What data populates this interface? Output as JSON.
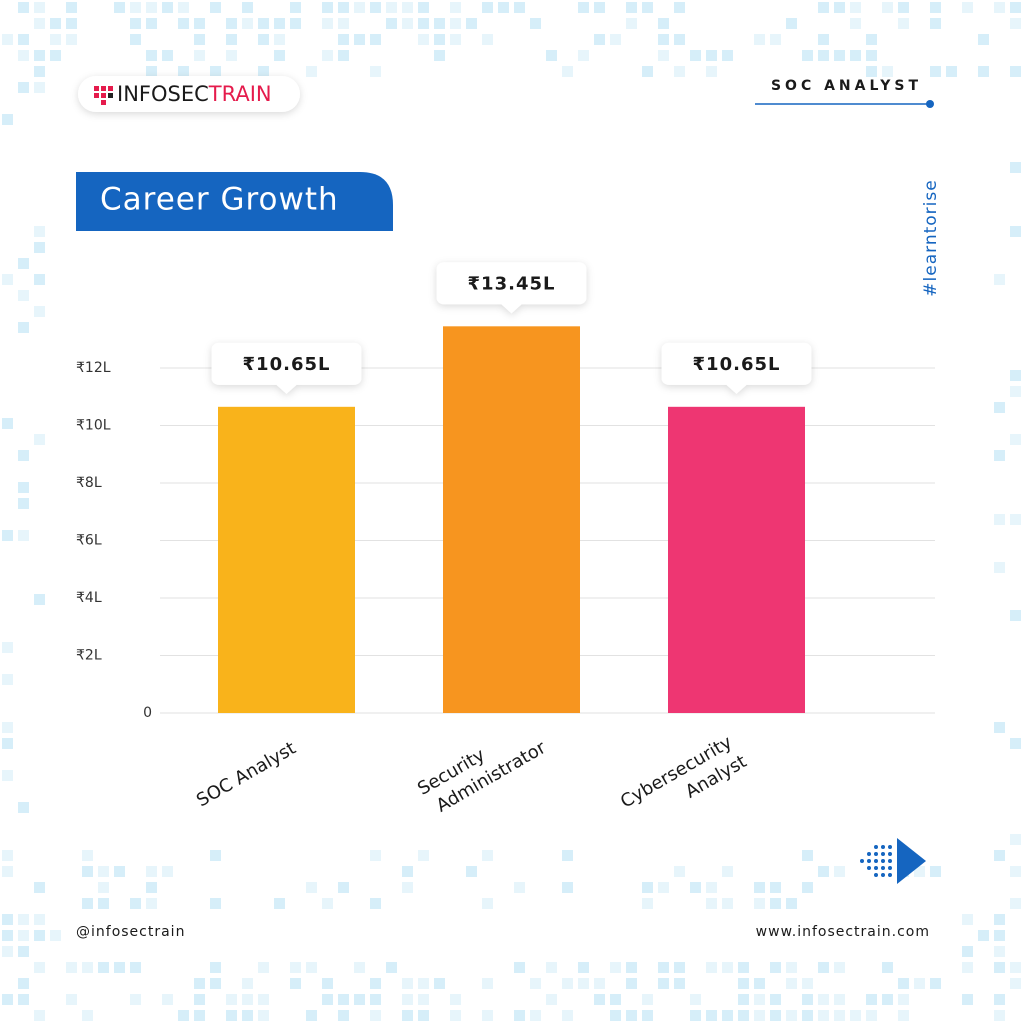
{
  "brand": {
    "first": "INFOSEC",
    "second": "TRAIN"
  },
  "topic": "SOC ANALYST",
  "hashtag": "#learntorise",
  "handle": "@infosectrain",
  "website": "www.infosectrain.com",
  "chart_data": {
    "type": "bar",
    "title": "Career Growth",
    "categories": [
      "SOC Analyst",
      "Security Administrator",
      "Cybersecurity Analyst"
    ],
    "values": [
      10.65,
      13.45,
      10.65
    ],
    "value_labels": [
      "₹10.65L",
      "₹13.45L",
      "₹10.65L"
    ],
    "colors": [
      "#f9b31b",
      "#f7951f",
      "#ee3672"
    ],
    "ylim": [
      0,
      14
    ],
    "yticks": [
      0,
      {
        "value": 2,
        "label": "₹2L"
      },
      {
        "value": 4,
        "label": "₹4L"
      },
      {
        "value": 6,
        "label": "₹6L"
      },
      {
        "value": 8,
        "label": "₹8L"
      },
      {
        "value": 10,
        "label": "₹10L"
      },
      {
        "value": 12,
        "label": "₹12L"
      }
    ],
    "grid": true
  }
}
